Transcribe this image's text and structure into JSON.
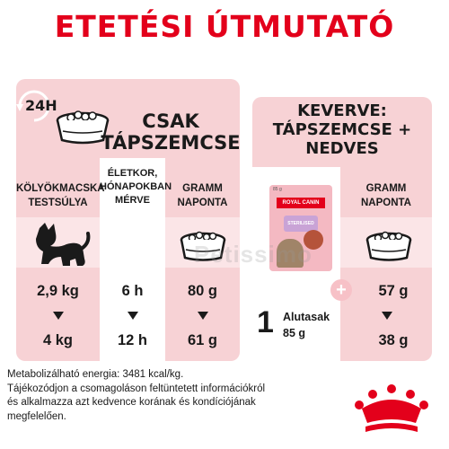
{
  "title": "ETETÉSI ÚTMUTATÓ",
  "left": {
    "badge": "24H",
    "heading_line1": "CSAK",
    "heading_line2": "TÁPSZEMCSE",
    "col1_header": [
      "KÖLYÖKMACSKA",
      "TESTSÚLYA"
    ],
    "col2_header": [
      "ÉLETKOR,",
      "HÓNAPOKBAN",
      "MÉRVE"
    ],
    "col3_header": [
      "GRAMM",
      "NAPONTA"
    ],
    "rows": [
      {
        "weight": "2,9 kg",
        "age": "6 h",
        "grams": "80 g"
      },
      {
        "weight": "4 kg",
        "age": "12 h",
        "grams": "61 g"
      }
    ]
  },
  "right": {
    "heading_line1": "KEVERVE:",
    "heading_line2": "TÁPSZEMCSE +",
    "heading_line3": "NEDVES",
    "col_header": [
      "GRAMM",
      "NAPONTA"
    ],
    "pouch_count": "1",
    "pouch_label": "Alutasak",
    "pouch_weight": "85 g",
    "pouch_size_label": "85 g",
    "pouch_brand": "ROYAL CANIN",
    "pouch_product": "STERILISED",
    "plus": "+",
    "grams_from": "57 g",
    "grams_to": "38 g"
  },
  "watermark": "Petissimo",
  "footer": {
    "line1": "Metabolizálható energia: 3481 kcal/kg.",
    "line2": "Tájékozódjon a csomagoláson feltüntetett információkról",
    "line3": "és alkalmazza azt kedvence korának és kondíciójának",
    "line4": "megfelelően."
  },
  "colors": {
    "brand_red": "#e3001b",
    "panel_pink": "#f7d2d5",
    "strip_pink": "#fbe5e7"
  }
}
